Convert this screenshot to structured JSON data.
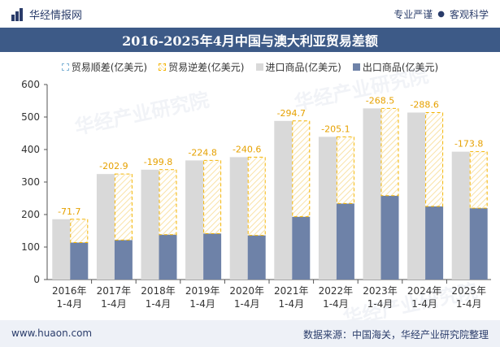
{
  "header": {
    "brand": "华经情报网",
    "tagline": [
      "专业严谨",
      "客观科学"
    ]
  },
  "footer": {
    "website": "www.huaon.com",
    "source": "数据来源：中国海关，华经产业研究院整理"
  },
  "watermark": "华经产业研究院",
  "colors": {
    "import": "#d9d9d9",
    "export": "#6e82a8",
    "deficit_border": "#f4b400",
    "deficit_label": "#e6a100",
    "surplus_border": "#7fb3d5",
    "title_bar": "#3d5a87"
  },
  "chart_data": {
    "type": "bar",
    "title": "2016-2025年4月中国与澳大利亚贸易差额",
    "categories": [
      [
        "2016年",
        "1-4月"
      ],
      [
        "2017年",
        "1-4月"
      ],
      [
        "2018年",
        "1-4月"
      ],
      [
        "2019年",
        "1-4月"
      ],
      [
        "2020年",
        "1-4月"
      ],
      [
        "2021年",
        "1-4月"
      ],
      [
        "2022年",
        "1-4月"
      ],
      [
        "2023年",
        "1-4月"
      ],
      [
        "2024年",
        "1-4月"
      ],
      [
        "2025年",
        "1-4月"
      ]
    ],
    "legend": [
      "贸易顺差(亿美元)",
      "贸易逆差(亿美元)",
      "进口商品(亿美元)",
      "出口商品(亿美元)"
    ],
    "series": [
      {
        "name": "进口商品(亿美元)",
        "values": [
          185.6,
          324.6,
          338.0,
          366.5,
          376.5,
          488.0,
          439.1,
          526.5,
          513.7,
          393.4
        ]
      },
      {
        "name": "出口商品(亿美元)",
        "values": [
          113.9,
          121.7,
          138.2,
          141.7,
          135.9,
          193.3,
          234.0,
          258.0,
          225.1,
          219.6
        ]
      }
    ],
    "trade_balance": {
      "name": "贸易逆差(亿美元)",
      "values": [
        -71.7,
        -202.9,
        -199.8,
        -224.8,
        -240.6,
        -294.7,
        -205.1,
        -268.5,
        -288.6,
        -173.8
      ],
      "labels": [
        "-71.7",
        "-202.9",
        "-199.8",
        "-224.8",
        "-240.6",
        "-294.7",
        "-205.1",
        "-268.5",
        "-288.6",
        "-173.8"
      ]
    },
    "yticks": [
      "0",
      "100",
      "200",
      "300",
      "400",
      "500",
      "600"
    ],
    "ylim": [
      0,
      600
    ],
    "legend_position": "top"
  }
}
